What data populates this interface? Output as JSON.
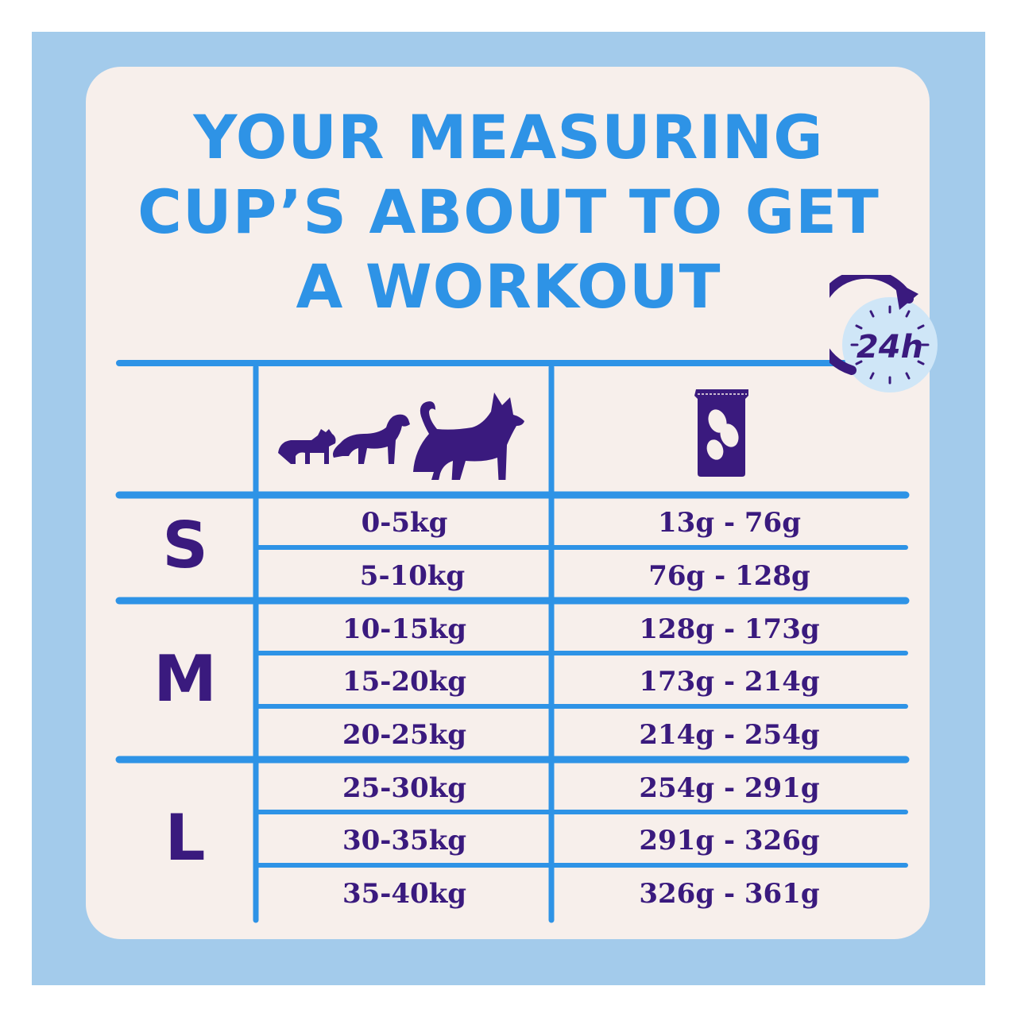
{
  "title_lines": [
    "YOUR MEASURING",
    "CUP’S ABOUT TO GET",
    "A WORKOUT"
  ],
  "badge": {
    "text": "24h"
  },
  "header_icons": [
    "dogs-size-icon",
    "food-bag-icon"
  ],
  "sizes": [
    {
      "letter": "S"
    },
    {
      "letter": "M"
    },
    {
      "letter": "L"
    }
  ],
  "rows": [
    {
      "weight": "0-5kg",
      "amount": "13g - 76g"
    },
    {
      "weight": "5-10kg",
      "amount": "76g - 128g"
    },
    {
      "weight": "10-15kg",
      "amount": "128g - 173g"
    },
    {
      "weight": "15-20kg",
      "amount": "173g - 214g"
    },
    {
      "weight": "20-25kg",
      "amount": "214g - 254g"
    },
    {
      "weight": "25-30kg",
      "amount": "254g - 291g"
    },
    {
      "weight": "30-35kg",
      "amount": "291g - 326g"
    },
    {
      "weight": "35-40kg",
      "amount": "326g - 361g"
    }
  ],
  "colors": {
    "background": "#a3cbeb",
    "card": "#f7efeb",
    "title": "#2e93e6",
    "ink": "#3a1a7e",
    "lines": "#2e93e6",
    "badge_fill": "#cfe6f7"
  }
}
